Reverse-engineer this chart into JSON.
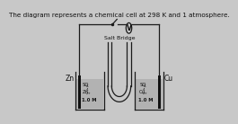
{
  "title": "The diagram represents a chemical cell at 298 K and 1 atmosphere.",
  "title_fontsize": 5.2,
  "bg_color": "#c8c8c8",
  "left_label": "Zn",
  "right_label": "Cu",
  "salt_bridge_label": "Salt Bridge",
  "line_color": "#1a1a1a",
  "electrode_color": "#111111",
  "text_color": "#111111",
  "beaker_fill": "#a0a0a0",
  "left_sol1": "SO",
  "left_sol1b": "4",
  "left_sol2": "Zn",
  "left_sol2b": "2+",
  "left_sol3": "1.0 M",
  "right_sol1": "SO",
  "right_sol1b": "4",
  "right_sol2": "Cu",
  "right_sol2b": "2+",
  "right_sol3": "1.0 M"
}
